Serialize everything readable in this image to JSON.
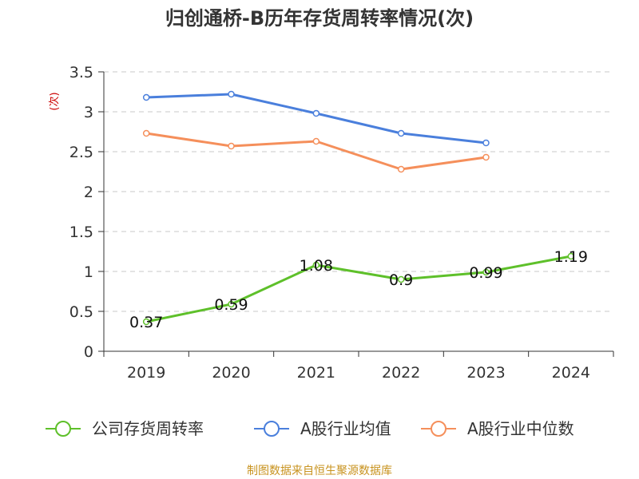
{
  "chart_data": {
    "type": "line",
    "title": "归创通桥-B历年存货周转率情况(次)",
    "ylabel": "(次)",
    "categories": [
      "2019",
      "2020",
      "2021",
      "2022",
      "2023",
      "2024"
    ],
    "ylim": [
      0,
      3.5
    ],
    "yticks": [
      "0",
      "0.5",
      "1",
      "1.5",
      "2",
      "2.5",
      "3",
      "3.5"
    ],
    "grid": true,
    "legend_position": "bottom",
    "series": [
      {
        "name": "公司存货周转率",
        "color": "#5ec02a",
        "values": [
          0.37,
          0.59,
          1.08,
          0.9,
          0.99,
          1.19
        ],
        "labels": [
          "0.37",
          "0.59",
          "1.08",
          "0.9",
          "0.99",
          "1.19"
        ]
      },
      {
        "name": "A股行业均值",
        "color": "#4a7fdc",
        "values": [
          3.18,
          3.22,
          2.98,
          2.73,
          2.61,
          null
        ]
      },
      {
        "name": "A股行业中位数",
        "color": "#f58f5b",
        "values": [
          2.73,
          2.57,
          2.63,
          2.28,
          2.43,
          null
        ]
      }
    ]
  },
  "source_text": "制图数据来自恒生聚源数据库"
}
